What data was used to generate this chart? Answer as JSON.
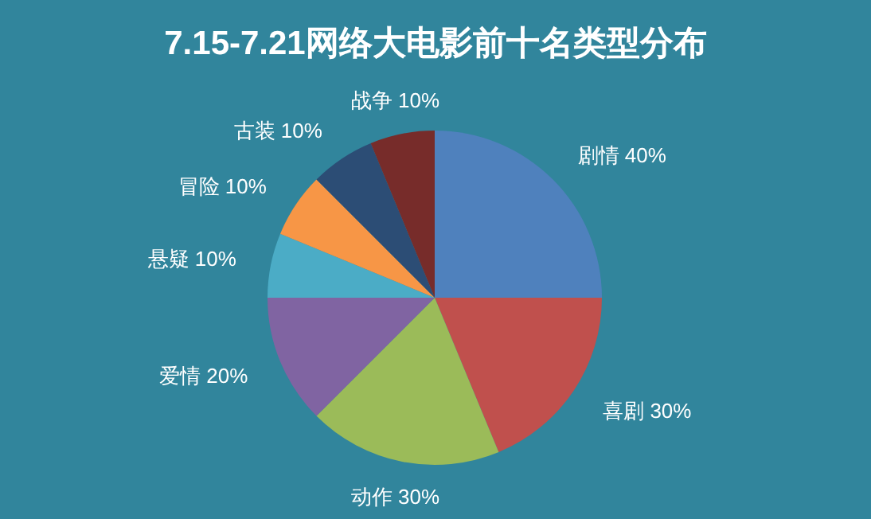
{
  "chart_data": {
    "type": "pie",
    "title": "7.15-7.21网络大电影前十名类型分布",
    "categories": [
      "剧情",
      "喜剧",
      "动作",
      "爱情",
      "悬疑",
      "冒险",
      "古装",
      "战争"
    ],
    "values": [
      40,
      30,
      30,
      20,
      10,
      10,
      10,
      10
    ],
    "value_labels": [
      "40%",
      "30%",
      "30%",
      "20%",
      "10%",
      "10%",
      "10%",
      "10%"
    ],
    "colors": [
      "#4f81bd",
      "#c0504d",
      "#9bbb59",
      "#8064a2",
      "#4bacc6",
      "#f79646",
      "#2c4d75",
      "#772c2a"
    ],
    "legend": false
  }
}
